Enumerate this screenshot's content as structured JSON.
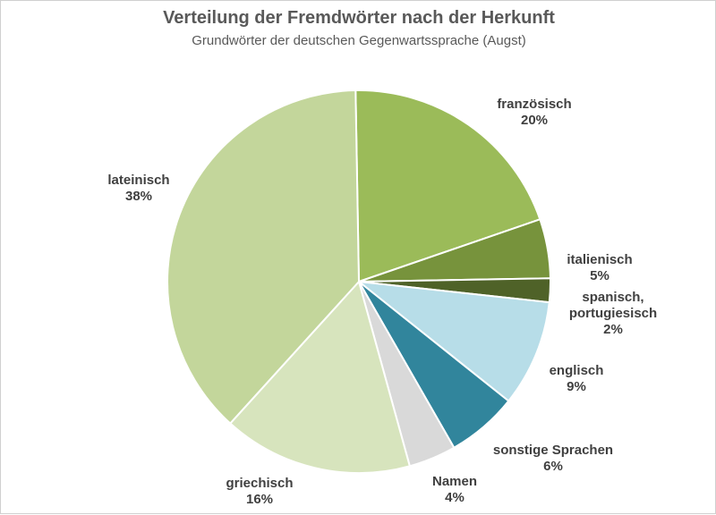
{
  "chart_data": {
    "type": "pie",
    "title": "Verteilung der Fremdwörter nach der Herkunft",
    "subtitle": "Grundwörter der deutschen Gegenwartssprache (Augst)",
    "slices": [
      {
        "name": "französisch",
        "value": 20,
        "label": "20%",
        "color": "#9bbb59"
      },
      {
        "name": "italienisch",
        "value": 5,
        "label": "5%",
        "color": "#77933c"
      },
      {
        "name": "spanisch, portugiesisch",
        "name_lines": [
          "spanisch,",
          "portugiesisch"
        ],
        "value": 2,
        "label": "2%",
        "color": "#4f6228"
      },
      {
        "name": "englisch",
        "value": 9,
        "label": "9%",
        "color": "#b7dde8"
      },
      {
        "name": "sonstige Sprachen",
        "value": 6,
        "label": "6%",
        "color": "#31859c"
      },
      {
        "name": "Namen",
        "value": 4,
        "label": "4%",
        "color": "#d9d9d9"
      },
      {
        "name": "griechisch",
        "value": 16,
        "label": "16%",
        "color": "#d7e4bd"
      },
      {
        "name": "lateinisch",
        "value": 38,
        "label": "38%",
        "color": "#c3d69b"
      }
    ],
    "start_angle_deg": 91,
    "direction": "clockwise",
    "legend": "none",
    "data_labels": "outside"
  }
}
